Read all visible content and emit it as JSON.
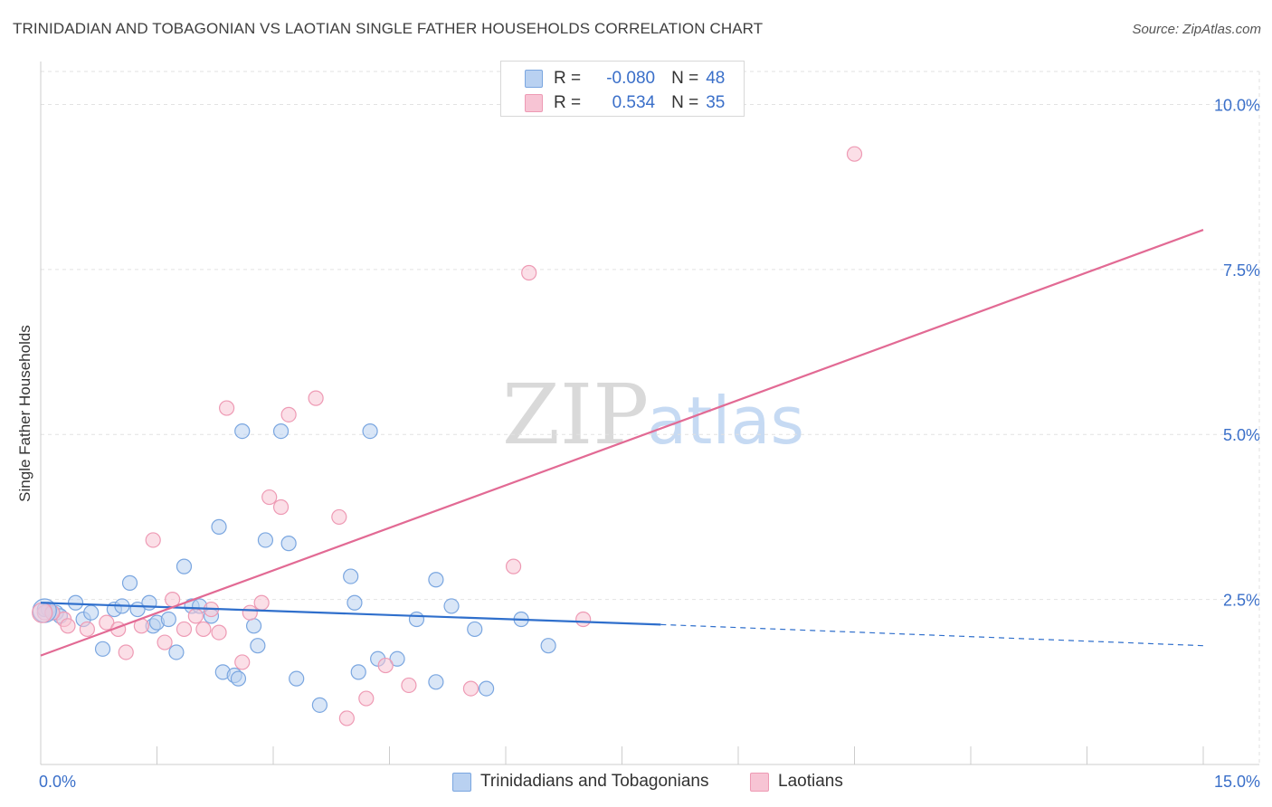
{
  "title": "TRINIDADIAN AND TOBAGONIAN VS LAOTIAN SINGLE FATHER HOUSEHOLDS CORRELATION CHART",
  "source": "Source: ZipAtlas.com",
  "watermark": {
    "zip": "ZIP",
    "atlas": "atlas"
  },
  "colors": {
    "blue_fill": "#b9d1f1",
    "blue_stroke": "#7aa6e0",
    "blue_line": "#2f6fcc",
    "pink_fill": "#f7c4d4",
    "pink_stroke": "#ee9ab4",
    "pink_line": "#e26a94",
    "axis_label": "#3a6fc9"
  },
  "legend_top": [
    {
      "r_label": "R =",
      "r_value": "-0.080",
      "n_label": "N =",
      "n_value": "48"
    },
    {
      "r_label": "R =",
      "r_value": "0.534",
      "n_label": "N =",
      "n_value": "35"
    }
  ],
  "legend_bottom": [
    "Trinidadians and Tobagonians",
    "Laotians"
  ],
  "chart_data": {
    "type": "scatter",
    "title": "TRINIDADIAN AND TOBAGONIAN VS LAOTIAN SINGLE FATHER HOUSEHOLDS CORRELATION CHART",
    "xlabel": "",
    "ylabel": "Single Father Households",
    "xlim": [
      0,
      15
    ],
    "ylim": [
      0,
      10.5
    ],
    "x_tick_labels": [
      "0.0%",
      "15.0%"
    ],
    "y_ticks": [
      2.5,
      5.0,
      7.5,
      10.0
    ],
    "y_tick_labels": [
      "2.5%",
      "5.0%",
      "7.5%",
      "10.0%"
    ],
    "grid": true,
    "legend_position": "top-center",
    "series": [
      {
        "name": "Trinidadians and Tobagonians",
        "r": -0.08,
        "n": 48,
        "trend": {
          "x0": 0,
          "y0": 2.45,
          "x1": 8.0,
          "y1": 2.12,
          "dashed_to_x": 15,
          "dashed_to_y": 1.8
        },
        "points": [
          [
            0.1,
            2.35
          ],
          [
            0.2,
            2.3
          ],
          [
            0.25,
            2.25
          ],
          [
            0.45,
            2.45
          ],
          [
            0.55,
            2.2
          ],
          [
            0.65,
            2.3
          ],
          [
            0.8,
            1.75
          ],
          [
            0.95,
            2.35
          ],
          [
            1.05,
            2.4
          ],
          [
            1.15,
            2.75
          ],
          [
            1.25,
            2.35
          ],
          [
            1.4,
            2.45
          ],
          [
            1.45,
            2.1
          ],
          [
            1.5,
            2.15
          ],
          [
            1.65,
            2.2
          ],
          [
            1.75,
            1.7
          ],
          [
            1.85,
            3.0
          ],
          [
            1.95,
            2.4
          ],
          [
            2.05,
            2.4
          ],
          [
            2.2,
            2.25
          ],
          [
            2.3,
            3.6
          ],
          [
            2.35,
            1.4
          ],
          [
            2.5,
            1.35
          ],
          [
            2.55,
            1.3
          ],
          [
            2.6,
            5.05
          ],
          [
            2.75,
            2.1
          ],
          [
            2.8,
            1.8
          ],
          [
            2.9,
            3.4
          ],
          [
            3.1,
            5.05
          ],
          [
            3.2,
            3.35
          ],
          [
            3.3,
            1.3
          ],
          [
            3.6,
            0.9
          ],
          [
            4.0,
            2.85
          ],
          [
            4.05,
            2.45
          ],
          [
            4.1,
            1.4
          ],
          [
            4.25,
            5.05
          ],
          [
            4.35,
            1.6
          ],
          [
            4.6,
            1.6
          ],
          [
            4.85,
            2.2
          ],
          [
            5.1,
            2.8
          ],
          [
            5.1,
            1.25
          ],
          [
            5.3,
            2.4
          ],
          [
            5.6,
            2.05
          ],
          [
            5.75,
            1.15
          ],
          [
            6.2,
            2.2
          ],
          [
            6.55,
            1.8
          ],
          [
            0.05,
            2.35
          ],
          [
            0.15,
            2.3
          ]
        ]
      },
      {
        "name": "Laotians",
        "r": 0.534,
        "n": 35,
        "trend": {
          "x0": 0,
          "y0": 1.65,
          "x1": 15,
          "y1": 8.1
        },
        "points": [
          [
            0.05,
            2.3
          ],
          [
            0.3,
            2.2
          ],
          [
            0.35,
            2.1
          ],
          [
            0.6,
            2.05
          ],
          [
            0.85,
            2.15
          ],
          [
            1.0,
            2.05
          ],
          [
            1.1,
            1.7
          ],
          [
            1.3,
            2.1
          ],
          [
            1.45,
            3.4
          ],
          [
            1.6,
            1.85
          ],
          [
            1.7,
            2.5
          ],
          [
            1.85,
            2.05
          ],
          [
            2.0,
            2.25
          ],
          [
            2.1,
            2.05
          ],
          [
            2.2,
            2.35
          ],
          [
            2.3,
            2.0
          ],
          [
            2.4,
            5.4
          ],
          [
            2.6,
            1.55
          ],
          [
            2.7,
            2.3
          ],
          [
            2.85,
            2.45
          ],
          [
            2.95,
            4.05
          ],
          [
            3.1,
            3.9
          ],
          [
            3.2,
            5.3
          ],
          [
            3.55,
            5.55
          ],
          [
            3.85,
            3.75
          ],
          [
            3.95,
            0.7
          ],
          [
            4.2,
            1.0
          ],
          [
            4.45,
            1.5
          ],
          [
            4.75,
            1.2
          ],
          [
            5.55,
            1.15
          ],
          [
            6.1,
            3.0
          ],
          [
            6.3,
            7.45
          ],
          [
            7.0,
            2.2
          ],
          [
            10.5,
            9.25
          ],
          [
            0.15,
            2.3
          ]
        ]
      }
    ]
  }
}
